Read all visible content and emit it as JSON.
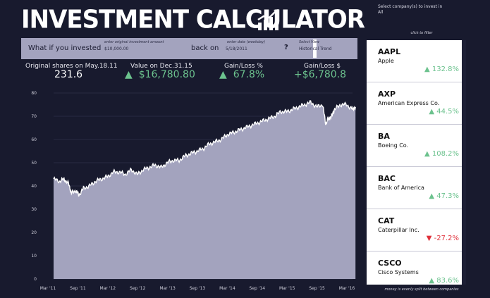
{
  "header": {
    "title": "INVESTMENT CALCULATOR",
    "icon": "bar-chart-icon"
  },
  "input_bar": {
    "what_if_label": "What if you invested",
    "amount_hint": "enter original investment amount",
    "amount_value": "$10,000.00",
    "back_on_label": "back on",
    "date_hint": "enter date (weekday)",
    "date_value": "5/18/2011",
    "question": "?",
    "view_hint": "Select View",
    "view_value": "Historical Trend"
  },
  "stats": [
    {
      "label": "Original shares on May.18.11",
      "arrow": "",
      "value": "231.6"
    },
    {
      "label": "Value on Dec.31.15",
      "arrow": "▲",
      "value": "$16,780.80"
    },
    {
      "label": "Gain/Loss %",
      "arrow": "▲",
      "value": "67.8%"
    },
    {
      "label": "Gain/Loss $",
      "arrow": "",
      "value": "+$6,780.8"
    }
  ],
  "chart_data": {
    "type": "area",
    "y_ticks": [
      "0",
      "10",
      "20",
      "30",
      "40",
      "50",
      "60",
      "70",
      "80"
    ],
    "ylim": [
      0,
      80
    ],
    "x_ticks": [
      "Mar '11",
      "Sep '11",
      "Mar '12",
      "Sep '12",
      "Mar '13",
      "Sep '13",
      "Mar '14",
      "Sep '14",
      "Mar '15",
      "Sep '15",
      "Mar '16"
    ],
    "fill_color": "#a3a3be",
    "series_points": [
      [
        0.0,
        43
      ],
      [
        0.2,
        42
      ],
      [
        0.35,
        43
      ],
      [
        0.5,
        41
      ],
      [
        0.6,
        37
      ],
      [
        0.75,
        38
      ],
      [
        0.85,
        36
      ],
      [
        1.0,
        39
      ],
      [
        1.2,
        40
      ],
      [
        1.4,
        42
      ],
      [
        1.6,
        43
      ],
      [
        1.8,
        44
      ],
      [
        2.0,
        46
      ],
      [
        2.2,
        46
      ],
      [
        2.4,
        45
      ],
      [
        2.6,
        47
      ],
      [
        2.8,
        45
      ],
      [
        3.0,
        47
      ],
      [
        3.2,
        48
      ],
      [
        3.4,
        49
      ],
      [
        3.6,
        48
      ],
      [
        3.8,
        50
      ],
      [
        4.0,
        51
      ],
      [
        4.2,
        51
      ],
      [
        4.4,
        53
      ],
      [
        4.6,
        54
      ],
      [
        4.8,
        55
      ],
      [
        5.0,
        56
      ],
      [
        5.2,
        58
      ],
      [
        5.4,
        59
      ],
      [
        5.6,
        60
      ],
      [
        5.8,
        62
      ],
      [
        6.0,
        63
      ],
      [
        6.2,
        64
      ],
      [
        6.4,
        65
      ],
      [
        6.6,
        66
      ],
      [
        6.8,
        67
      ],
      [
        7.0,
        68
      ],
      [
        7.2,
        69
      ],
      [
        7.4,
        70
      ],
      [
        7.6,
        72
      ],
      [
        7.8,
        72
      ],
      [
        8.0,
        73
      ],
      [
        8.2,
        74
      ],
      [
        8.4,
        75
      ],
      [
        8.6,
        76
      ],
      [
        8.8,
        74
      ],
      [
        9.0,
        75
      ],
      [
        9.1,
        67
      ],
      [
        9.2,
        69
      ],
      [
        9.3,
        70
      ],
      [
        9.4,
        73
      ],
      [
        9.6,
        75
      ],
      [
        9.8,
        75
      ],
      [
        10.0,
        73
      ],
      [
        10.1,
        74
      ]
    ]
  },
  "sidebar": {
    "heading": "Select company(s) to invest in",
    "heading_sub": "All",
    "filter_hint": "click to filter",
    "footnote": "money is evenly split between companies",
    "companies": [
      {
        "ticker": "AAPL",
        "name": "Apple",
        "arrow": "▲",
        "change": "132.8%",
        "status": "up"
      },
      {
        "ticker": "AXP",
        "name": "American Express Co.",
        "arrow": "▲",
        "change": "44.5%",
        "status": "up"
      },
      {
        "ticker": "BA",
        "name": "Boeing Co.",
        "arrow": "▲",
        "change": "108.2%",
        "status": "up"
      },
      {
        "ticker": "BAC",
        "name": "Bank of America",
        "arrow": "▲",
        "change": "47.3%",
        "status": "up"
      },
      {
        "ticker": "CAT",
        "name": "Caterpillar Inc.",
        "arrow": "▼",
        "change": "-27.2%",
        "status": "down"
      },
      {
        "ticker": "CSCO",
        "name": "Cisco Systems",
        "arrow": "▲",
        "change": "83.6%",
        "status": "up"
      }
    ]
  }
}
